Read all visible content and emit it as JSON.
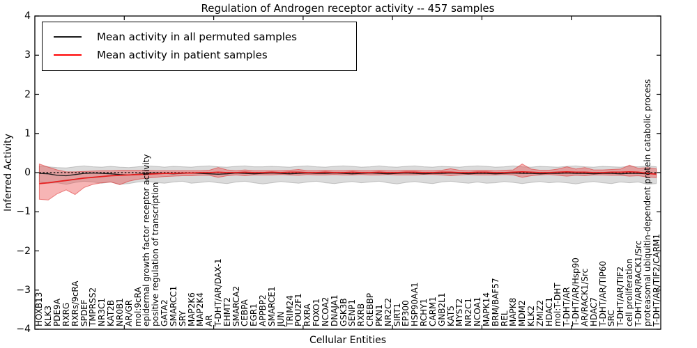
{
  "chart_data": {
    "type": "line",
    "title": "Regulation of Androgen receptor activity -- 457 samples",
    "xlabel": "Cellular Entities",
    "ylabel": "Inferred Activity",
    "ylim": [
      -4,
      4
    ],
    "yticks": [
      4,
      3,
      2,
      1,
      0,
      -1,
      -2,
      -3,
      -4
    ],
    "grid": false,
    "legend_position": "upper-left",
    "categories": [
      "HOXB13",
      "KLK3",
      "PDE9A",
      "RXRG",
      "RXRs/9cRA",
      "SPDEF",
      "TMPRSS2",
      "NR3C1",
      "KAT2B",
      "NR0B1",
      "AR/GR",
      "mol:9cRA",
      "epidermal growth factor receptor activity",
      "positive regulation of transcription",
      "GATA2",
      "SMARCC1",
      "SRY",
      "MAP2K6",
      "MAP2K4",
      "AR",
      "T-DHT/AR/DAX-1",
      "EHMT2",
      "SMARCA2",
      "CEBPA",
      "EGR1",
      "APPBP2",
      "SMARCE1",
      "JUN",
      "TRIM24",
      "POU2F1",
      "RXRA",
      "FOXO1",
      "NCOA2",
      "DNAJA1",
      "GSK3B",
      "SENP1",
      "RXRB",
      "CREBBP",
      "PKN1",
      "NR2C2",
      "SIRT1",
      "EP300",
      "HSP90AA1",
      "RCHY1",
      "CARM1",
      "GNB2L1",
      "KAT5",
      "MYST2",
      "NR2C1",
      "NCOA1",
      "MAPK14",
      "BRM/BAF57",
      "REL",
      "MAPK8",
      "MDM2",
      "KLK2",
      "ZMIZ2",
      "HDAC1",
      "mol:T-DHT",
      "T-DHT/AR",
      "T-DHT/AR/Hsp90",
      "AR/RACK1/Src",
      "HDAC7",
      "T-DHT/AR/TIP60",
      "SRC",
      "T-DHT/AR/TIF2",
      "cell proliferation",
      "T-DHT/AR/RACK1/Src",
      "proteasomal ubiquitin-dependent protein catabolic process",
      "T-DHT/AR/TIF2/CARM1"
    ],
    "series": [
      {
        "name": "Mean activity in all permuted samples",
        "color": "#1a1a1a",
        "band_fill": "rgba(110,110,110,0.25)",
        "band_edge": "rgba(110,110,110,0.35)",
        "values": [
          -0.02,
          -0.03,
          -0.07,
          -0.08,
          -0.05,
          -0.02,
          -0.01,
          -0.02,
          -0.03,
          -0.05,
          -0.06,
          -0.04,
          -0.02,
          -0.01,
          -0.02,
          -0.03,
          -0.02,
          -0.01,
          -0.02,
          -0.03,
          -0.04,
          -0.03,
          -0.01,
          -0.02,
          -0.03,
          -0.02,
          -0.01,
          -0.02,
          -0.03,
          -0.02,
          -0.01,
          -0.02,
          -0.02,
          -0.01,
          -0.02,
          -0.03,
          -0.02,
          -0.01,
          -0.02,
          -0.03,
          -0.02,
          -0.01,
          -0.02,
          -0.03,
          -0.02,
          -0.02,
          -0.01,
          -0.02,
          -0.03,
          -0.02,
          -0.02,
          -0.03,
          -0.02,
          -0.01,
          -0.02,
          -0.02,
          -0.03,
          -0.02,
          -0.02,
          -0.01,
          -0.02,
          -0.02,
          -0.03,
          -0.02,
          -0.02,
          -0.03,
          -0.02,
          -0.02,
          -0.03,
          -0.03
        ],
        "band_upper": [
          0.17,
          0.15,
          0.13,
          0.12,
          0.15,
          0.17,
          0.15,
          0.14,
          0.16,
          0.14,
          0.13,
          0.15,
          0.17,
          0.16,
          0.14,
          0.16,
          0.15,
          0.14,
          0.16,
          0.17,
          0.15,
          0.14,
          0.16,
          0.17,
          0.15,
          0.15,
          0.16,
          0.15,
          0.14,
          0.16,
          0.17,
          0.15,
          0.14,
          0.16,
          0.17,
          0.16,
          0.14,
          0.15,
          0.17,
          0.15,
          0.14,
          0.16,
          0.17,
          0.15,
          0.14,
          0.16,
          0.15,
          0.14,
          0.16,
          0.17,
          0.16,
          0.14,
          0.15,
          0.17,
          0.15,
          0.14,
          0.16,
          0.15,
          0.14,
          0.16,
          0.17,
          0.15,
          0.14,
          0.16,
          0.15,
          0.14,
          0.16,
          0.15,
          0.17,
          0.15
        ],
        "band_lower": [
          -0.24,
          -0.27,
          -0.26,
          -0.3,
          -0.25,
          -0.22,
          -0.24,
          -0.27,
          -0.24,
          -0.3,
          -0.28,
          -0.24,
          -0.22,
          -0.25,
          -0.27,
          -0.24,
          -0.22,
          -0.27,
          -0.25,
          -0.23,
          -0.26,
          -0.28,
          -0.24,
          -0.22,
          -0.26,
          -0.29,
          -0.26,
          -0.23,
          -0.25,
          -0.27,
          -0.24,
          -0.22,
          -0.26,
          -0.28,
          -0.25,
          -0.23,
          -0.26,
          -0.24,
          -0.22,
          -0.26,
          -0.29,
          -0.25,
          -0.23,
          -0.26,
          -0.28,
          -0.24,
          -0.22,
          -0.25,
          -0.27,
          -0.24,
          -0.27,
          -0.26,
          -0.23,
          -0.25,
          -0.28,
          -0.25,
          -0.23,
          -0.26,
          -0.24,
          -0.26,
          -0.29,
          -0.25,
          -0.23,
          -0.26,
          -0.28,
          -0.24,
          -0.26,
          -0.24,
          -0.3,
          -0.28
        ]
      },
      {
        "name": "Mean activity in patient samples",
        "color": "#e62020",
        "band_fill": "rgba(235,60,60,0.38)",
        "band_edge": "rgba(220,40,40,0.55)",
        "values": [
          -0.28,
          -0.26,
          -0.23,
          -0.2,
          -0.17,
          -0.14,
          -0.12,
          -0.1,
          -0.08,
          -0.07,
          -0.06,
          -0.05,
          -0.04,
          -0.03,
          -0.02,
          -0.02,
          -0.01,
          -0.01,
          0.0,
          0.0,
          0.01,
          0.0,
          0.0,
          0.01,
          0.0,
          0.0,
          0.01,
          0.0,
          0.01,
          0.01,
          0.0,
          0.0,
          0.01,
          0.0,
          0.0,
          0.01,
          0.0,
          0.0,
          0.01,
          0.0,
          0.0,
          0.01,
          0.01,
          0.0,
          0.0,
          0.01,
          0.01,
          0.0,
          0.0,
          0.01,
          0.01,
          0.0,
          0.0,
          0.01,
          0.02,
          0.01,
          0.0,
          0.0,
          0.01,
          0.02,
          0.01,
          0.01,
          0.0,
          0.0,
          0.01,
          0.01,
          0.02,
          0.01,
          -0.02,
          -0.04
        ],
        "band_upper": [
          0.22,
          0.14,
          0.07,
          0.02,
          0.02,
          0.03,
          0.04,
          0.05,
          0.05,
          0.06,
          0.06,
          0.06,
          0.06,
          0.05,
          0.05,
          0.05,
          0.05,
          0.05,
          0.05,
          0.06,
          0.13,
          0.07,
          0.05,
          0.07,
          0.05,
          0.05,
          0.05,
          0.05,
          0.06,
          0.08,
          0.05,
          0.05,
          0.06,
          0.05,
          0.05,
          0.06,
          0.05,
          0.05,
          0.06,
          0.05,
          0.05,
          0.06,
          0.06,
          0.05,
          0.05,
          0.06,
          0.1,
          0.06,
          0.05,
          0.06,
          0.06,
          0.05,
          0.06,
          0.07,
          0.22,
          0.09,
          0.06,
          0.06,
          0.09,
          0.15,
          0.09,
          0.13,
          0.07,
          0.07,
          0.08,
          0.09,
          0.19,
          0.11,
          0.13,
          0.1
        ],
        "band_lower": [
          -0.68,
          -0.7,
          -0.54,
          -0.44,
          -0.56,
          -0.38,
          -0.3,
          -0.26,
          -0.24,
          -0.31,
          -0.22,
          -0.17,
          -0.14,
          -0.12,
          -0.1,
          -0.09,
          -0.08,
          -0.08,
          -0.07,
          -0.07,
          -0.12,
          -0.08,
          -0.06,
          -0.08,
          -0.06,
          -0.06,
          -0.06,
          -0.05,
          -0.06,
          -0.07,
          -0.05,
          -0.06,
          -0.06,
          -0.05,
          -0.06,
          -0.06,
          -0.05,
          -0.06,
          -0.06,
          -0.05,
          -0.06,
          -0.06,
          -0.06,
          -0.05,
          -0.05,
          -0.06,
          -0.08,
          -0.06,
          -0.05,
          -0.06,
          -0.06,
          -0.06,
          -0.05,
          -0.06,
          -0.12,
          -0.08,
          -0.06,
          -0.05,
          -0.07,
          -0.09,
          -0.07,
          -0.08,
          -0.06,
          -0.06,
          -0.07,
          -0.07,
          -0.09,
          -0.08,
          -0.11,
          -0.13
        ]
      }
    ],
    "zero_line": {
      "color": "#000000",
      "style": "dotted"
    }
  },
  "legend": {
    "items": [
      {
        "label": "Mean activity in all permuted samples",
        "color": "#1a1a1a"
      },
      {
        "label": "Mean activity in patient samples",
        "color": "#ff0000"
      }
    ]
  }
}
